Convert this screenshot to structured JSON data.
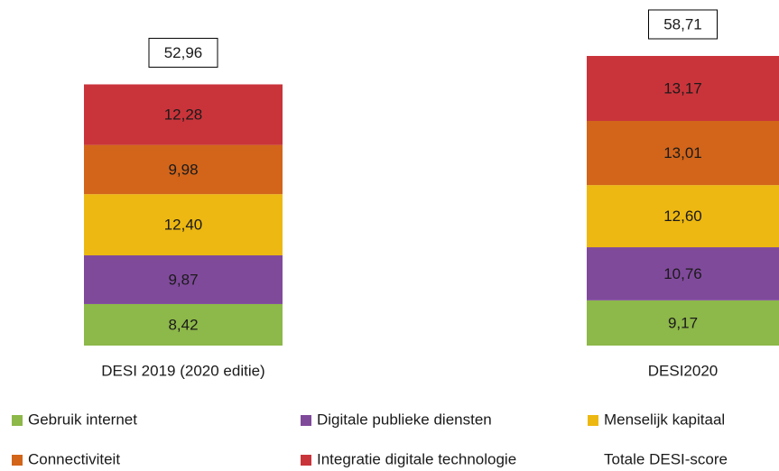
{
  "chart_data": {
    "type": "stacked_bar",
    "categories": [
      "DESI 2019  (2020 editie)",
      "DESI2020"
    ],
    "series": [
      {
        "name": "Gebruik internet",
        "color": "#8db84a",
        "values": [
          8.42,
          9.17
        ],
        "value_labels": [
          "8,42",
          "9,17"
        ]
      },
      {
        "name": "Digitale publieke diensten",
        "color": "#804a9b",
        "values": [
          9.87,
          10.76
        ],
        "value_labels": [
          "9,87",
          "10,76"
        ]
      },
      {
        "name": "Menselijk kapitaal",
        "color": "#edb811",
        "values": [
          12.4,
          12.6
        ],
        "value_labels": [
          "12,40",
          "12,60"
        ]
      },
      {
        "name": "Connectiviteit",
        "color": "#d2651a",
        "values": [
          9.98,
          13.01
        ],
        "value_labels": [
          "9,98",
          "13,01"
        ]
      },
      {
        "name": "Integratie digitale technologie",
        "color": "#c9343a",
        "values": [
          12.28,
          13.17
        ],
        "value_labels": [
          "12,28",
          "13,17"
        ]
      }
    ],
    "totals": {
      "name": "Totale DESI-score",
      "values": [
        52.96,
        58.71
      ],
      "value_labels": [
        "52,96",
        "58,71"
      ]
    }
  }
}
